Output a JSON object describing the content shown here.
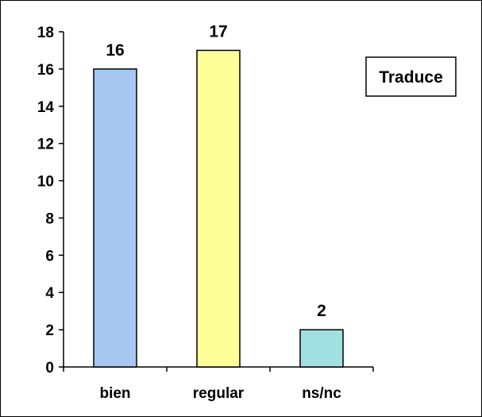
{
  "chart_data": {
    "type": "bar",
    "categories": [
      "bien",
      "regular",
      "ns/nc"
    ],
    "values": [
      16,
      17,
      2
    ],
    "colors": [
      "#A6C8F0",
      "#FFFF99",
      "#A0E0E0"
    ],
    "legend": "Traduce",
    "legend_position": "top-right",
    "ylim": [
      0,
      18
    ],
    "yticks": [
      0,
      2,
      4,
      6,
      8,
      10,
      12,
      14,
      16,
      18
    ],
    "grid": false,
    "data_labels": [
      "16",
      "17",
      "2"
    ]
  }
}
